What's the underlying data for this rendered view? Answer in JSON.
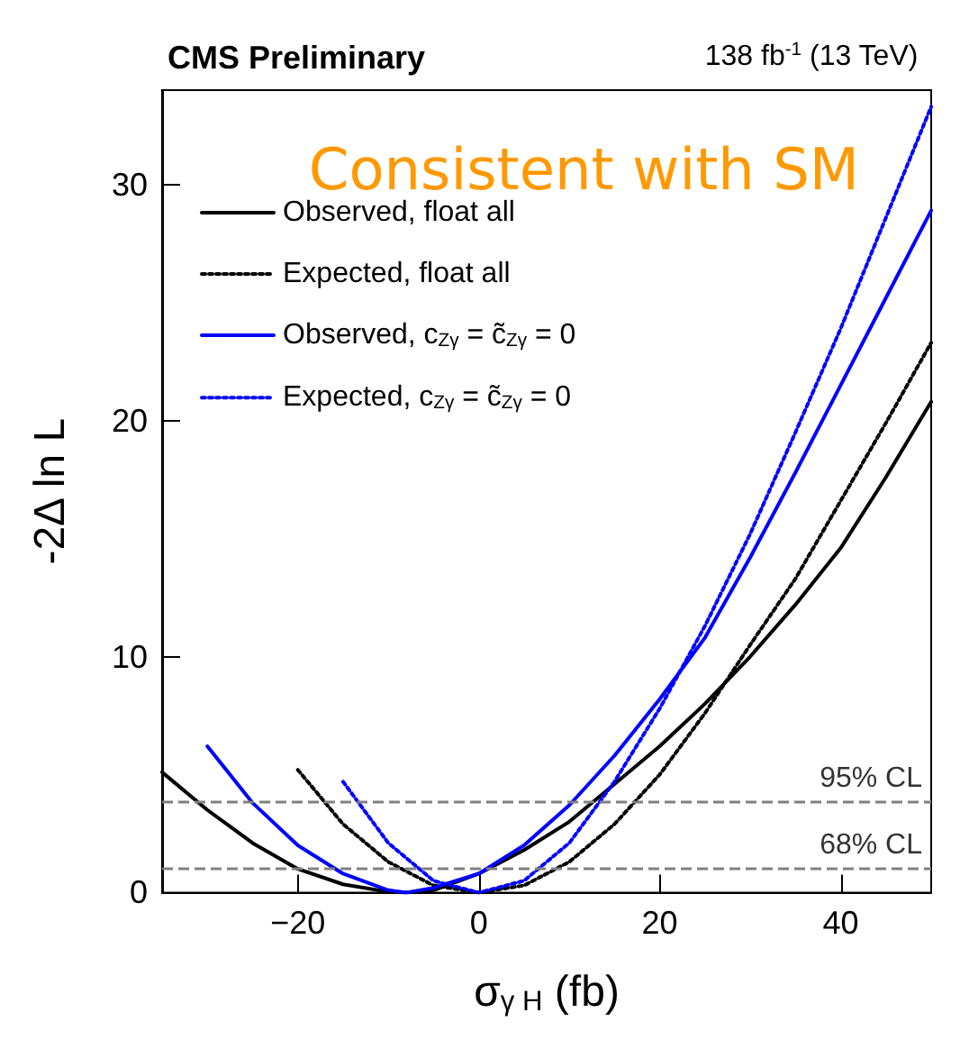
{
  "chart_data": {
    "type": "line",
    "title": "CMS Preliminary",
    "subtitle": "138 fb$^{-1}$ (13 TeV)",
    "xlabel": "σ$_{γ H}$ (fb)",
    "ylabel": "-2Δ ln L",
    "annotations": [
      "Consistent with SM"
    ],
    "xlim": [
      -35,
      50
    ],
    "xticks": [
      -20,
      0,
      20,
      40
    ],
    "ylim": [
      0,
      34
    ],
    "yticks": [
      0,
      10,
      20,
      30
    ],
    "legend": "top left",
    "marker": "none",
    "grid": false,
    "series": [
      {
        "name": "Observed, float all",
        "color": "#000000",
        "line_style": "solid",
        "x": [
          -35,
          -30,
          -25,
          -20,
          -15,
          -10,
          -8,
          -5,
          0,
          5,
          10,
          15,
          20,
          25,
          30,
          35,
          40,
          45,
          50
        ],
        "values": [
          5.1,
          3.5,
          2.1,
          1.0,
          0.35,
          0.03,
          0,
          0.1,
          0.8,
          1.8,
          3.0,
          4.6,
          6.2,
          8.0,
          10.0,
          12.2,
          14.6,
          17.6,
          20.8
        ]
      },
      {
        "name": "Expected, float all",
        "color": "#000000",
        "line_style": "dotted",
        "x": [
          -20,
          -15,
          -10,
          -5,
          0,
          5,
          10,
          15,
          20,
          25,
          30,
          35,
          40,
          45,
          50
        ],
        "values": [
          5.2,
          2.9,
          1.3,
          0.3,
          0,
          0.3,
          1.3,
          2.9,
          5.0,
          7.6,
          10.5,
          13.3,
          16.6,
          19.9,
          23.3
        ]
      },
      {
        "name": "Observed, c$_{Zγ}$ = c̃$_{Zγ}$ = 0",
        "color": "#0000ff",
        "line_style": "solid",
        "x": [
          -30,
          -25,
          -20,
          -15,
          -10,
          -8,
          -5,
          0,
          5,
          10,
          15,
          20,
          25,
          30,
          35,
          40,
          45,
          50
        ],
        "values": [
          6.2,
          3.8,
          2.0,
          0.8,
          0.1,
          0,
          0.2,
          0.8,
          2.0,
          3.7,
          5.8,
          8.2,
          10.8,
          14.2,
          17.8,
          21.5,
          25.2,
          28.9
        ]
      },
      {
        "name": "Expected, c$_{Zγ}$ = c̃$_{Zγ}$ = 0",
        "color": "#0000ff",
        "line_style": "dotted",
        "x": [
          -15,
          -10,
          -5,
          0,
          5,
          10,
          15,
          20,
          25,
          30,
          35,
          40,
          45,
          50
        ],
        "values": [
          4.7,
          2.1,
          0.5,
          0,
          0.5,
          2.1,
          4.7,
          7.8,
          11.3,
          15.2,
          19.5,
          23.9,
          28.6,
          33.3
        ]
      }
    ],
    "ref_lines": [
      {
        "axis": "y",
        "value": 3.84,
        "label": "95% CL",
        "color": "#808080",
        "line_style": "dashed"
      },
      {
        "axis": "y",
        "value": 1,
        "label": "68% CL",
        "color": "#808080",
        "line_style": "dashed"
      }
    ]
  }
}
